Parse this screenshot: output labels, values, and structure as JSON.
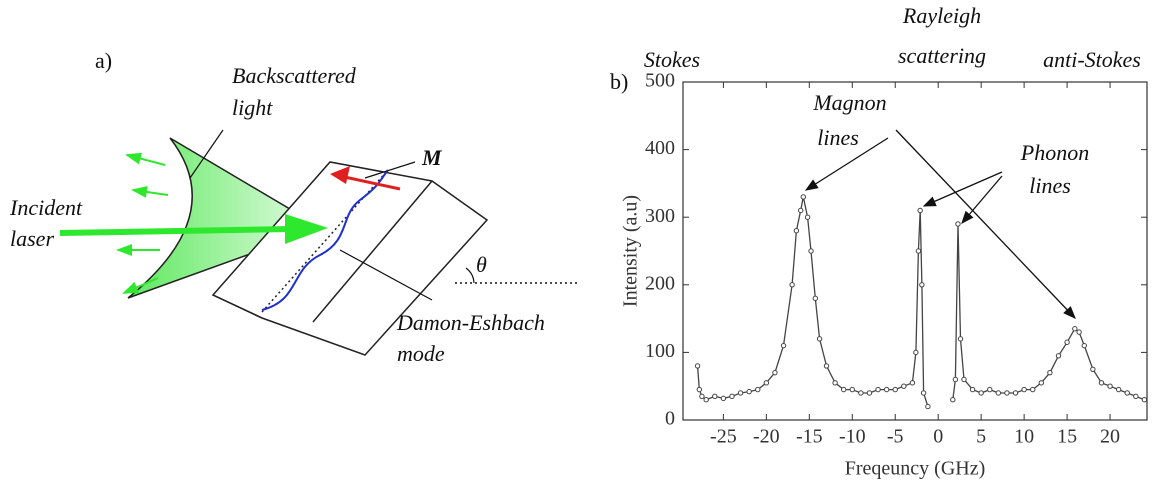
{
  "diagram": {
    "label": "a)",
    "backscattered": [
      "Backscattered",
      "light"
    ],
    "incident": [
      "Incident",
      "laser"
    ],
    "magnetization": "M",
    "angle": "θ",
    "mode": [
      "Damon-Eshbach",
      "mode"
    ]
  },
  "chart_data": {
    "type": "line",
    "panel_label": "b)",
    "x_label": "Freqeuncy (GHz)",
    "y_label": "Intensity (a.u)",
    "annotations": {
      "stokes": "Stokes",
      "rayleigh": [
        "Rayleigh",
        "scattering"
      ],
      "anti_stokes": "anti-Stokes",
      "magnon": [
        "Magnon",
        "lines"
      ],
      "phonon": [
        "Phonon",
        "lines"
      ]
    },
    "color": "#444444",
    "xlim": [
      -29.7,
      24.3
    ],
    "ylim": [
      0,
      500
    ],
    "xticks": [
      -25,
      -20,
      -15,
      -10,
      -5,
      0,
      5,
      10,
      15,
      20
    ],
    "yticks": [
      0,
      100,
      200,
      300,
      400,
      500
    ],
    "x": [
      -28,
      -27.8,
      -27.5,
      -27,
      -26,
      -25,
      -24,
      -23,
      -22,
      -21,
      -20,
      -19,
      -18,
      -17,
      -16.5,
      -16,
      -15.7,
      -15.2,
      -14.8,
      -14.3,
      -13.8,
      -13,
      -12,
      -11,
      -10,
      -9,
      -8,
      -7,
      -6,
      -5,
      -4,
      -3,
      -2.6,
      -2.3,
      -2.1,
      -1.9,
      -1.7,
      -1.2,
      -0.9,
      1.5,
      1.7,
      2.0,
      2.3,
      2.6,
      3,
      4,
      5,
      6,
      7,
      8,
      9,
      10,
      11,
      12,
      13,
      14,
      15,
      15.9,
      16.4,
      17,
      18,
      19,
      20,
      21,
      22,
      23,
      24
    ],
    "values": [
      80,
      45,
      35,
      30,
      35,
      32,
      35,
      40,
      42,
      45,
      55,
      70,
      110,
      200,
      280,
      310,
      330,
      300,
      250,
      180,
      120,
      80,
      55,
      45,
      45,
      40,
      40,
      45,
      45,
      45,
      50,
      55,
      100,
      250,
      310,
      200,
      40,
      20,
      null,
      null,
      30,
      60,
      290,
      120,
      60,
      45,
      40,
      45,
      40,
      40,
      40,
      45,
      45,
      55,
      70,
      95,
      115,
      135,
      130,
      110,
      75,
      55,
      50,
      45,
      40,
      35,
      30
    ]
  }
}
